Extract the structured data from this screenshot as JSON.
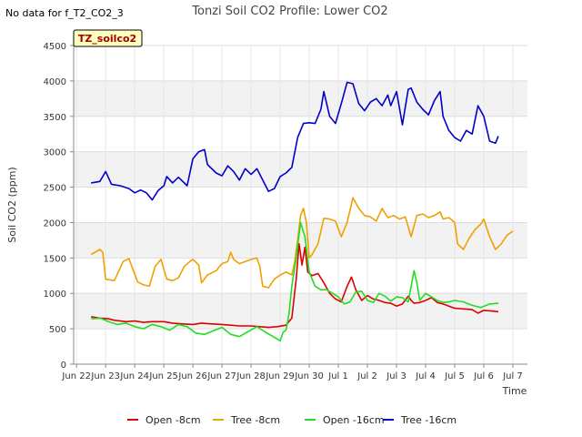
{
  "no_data_note": "No data for f_T2_CO2_3",
  "site_badge": "TZ_soilco2",
  "chart_data": {
    "type": "line",
    "title": "Tonzi Soil CO2 Profile: Lower CO2",
    "xlabel": "Time",
    "ylabel": "Soil CO2 (ppm)",
    "xlim": [
      -0.1,
      15.5
    ],
    "ylim": [
      0,
      4500
    ],
    "grid": true,
    "legend_position": "bottom",
    "x_tick_values": [
      0,
      1,
      2,
      3,
      4,
      5,
      6,
      7,
      8,
      9,
      10,
      11,
      12,
      13,
      14,
      15
    ],
    "x_tick_labels": [
      "Jun 22",
      "Jun 23",
      "Jun 24",
      "Jun 25",
      "Jun 26",
      "Jun 27",
      "Jun 28",
      "Jun 29",
      "Jun 30",
      "Jul 1",
      "Jul 2",
      "Jul 3",
      "Jul 4",
      "Jul 5",
      "Jul 6",
      "Jul 7"
    ],
    "y_tick_values": [
      0,
      500,
      1000,
      1500,
      2000,
      2500,
      3000,
      3500,
      4000,
      4500
    ],
    "y_tick_labels": [
      "0",
      "500",
      "1000",
      "1500",
      "2000",
      "2500",
      "3000",
      "3500",
      "4000",
      "4500"
    ],
    "series": [
      {
        "name": "Open -8cm",
        "color": "#dd0000",
        "points": [
          [
            0.5,
            670
          ],
          [
            0.8,
            650
          ],
          [
            1.1,
            640
          ],
          [
            1.3,
            620
          ],
          [
            1.7,
            600
          ],
          [
            2.0,
            610
          ],
          [
            2.3,
            590
          ],
          [
            2.6,
            600
          ],
          [
            3.0,
            600
          ],
          [
            3.3,
            580
          ],
          [
            3.6,
            570
          ],
          [
            4.0,
            560
          ],
          [
            4.3,
            580
          ],
          [
            4.6,
            570
          ],
          [
            5.0,
            560
          ],
          [
            5.3,
            550
          ],
          [
            5.6,
            540
          ],
          [
            6.0,
            540
          ],
          [
            6.3,
            530
          ],
          [
            6.6,
            520
          ],
          [
            6.9,
            530
          ],
          [
            7.2,
            550
          ],
          [
            7.4,
            650
          ],
          [
            7.55,
            1200
          ],
          [
            7.65,
            1700
          ],
          [
            7.75,
            1400
          ],
          [
            7.85,
            1650
          ],
          [
            7.95,
            1300
          ],
          [
            8.1,
            1250
          ],
          [
            8.3,
            1280
          ],
          [
            8.5,
            1150
          ],
          [
            8.7,
            1000
          ],
          [
            8.9,
            920
          ],
          [
            9.1,
            880
          ],
          [
            9.3,
            1100
          ],
          [
            9.45,
            1230
          ],
          [
            9.6,
            1050
          ],
          [
            9.8,
            900
          ],
          [
            10.0,
            970
          ],
          [
            10.2,
            920
          ],
          [
            10.4,
            900
          ],
          [
            10.6,
            870
          ],
          [
            10.8,
            860
          ],
          [
            11.0,
            820
          ],
          [
            11.2,
            850
          ],
          [
            11.4,
            960
          ],
          [
            11.5,
            900
          ],
          [
            11.6,
            860
          ],
          [
            11.8,
            870
          ],
          [
            12.0,
            900
          ],
          [
            12.2,
            940
          ],
          [
            12.4,
            870
          ],
          [
            12.6,
            850
          ],
          [
            12.8,
            820
          ],
          [
            13.0,
            790
          ],
          [
            13.3,
            780
          ],
          [
            13.6,
            770
          ],
          [
            13.8,
            720
          ],
          [
            14.0,
            760
          ],
          [
            14.3,
            750
          ],
          [
            14.5,
            740
          ]
        ]
      },
      {
        "name": "Tree -8cm",
        "color": "#f0a000",
        "points": [
          [
            0.5,
            1550
          ],
          [
            0.8,
            1620
          ],
          [
            0.9,
            1580
          ],
          [
            1.0,
            1200
          ],
          [
            1.3,
            1180
          ],
          [
            1.6,
            1450
          ],
          [
            1.8,
            1490
          ],
          [
            1.9,
            1380
          ],
          [
            2.1,
            1160
          ],
          [
            2.3,
            1120
          ],
          [
            2.5,
            1100
          ],
          [
            2.7,
            1380
          ],
          [
            2.9,
            1480
          ],
          [
            3.1,
            1200
          ],
          [
            3.3,
            1180
          ],
          [
            3.5,
            1220
          ],
          [
            3.7,
            1380
          ],
          [
            3.9,
            1450
          ],
          [
            4.0,
            1480
          ],
          [
            4.2,
            1400
          ],
          [
            4.3,
            1150
          ],
          [
            4.5,
            1260
          ],
          [
            4.8,
            1320
          ],
          [
            5.0,
            1420
          ],
          [
            5.2,
            1450
          ],
          [
            5.3,
            1580
          ],
          [
            5.4,
            1480
          ],
          [
            5.6,
            1420
          ],
          [
            5.8,
            1450
          ],
          [
            6.0,
            1480
          ],
          [
            6.2,
            1500
          ],
          [
            6.3,
            1380
          ],
          [
            6.4,
            1100
          ],
          [
            6.6,
            1080
          ],
          [
            6.8,
            1200
          ],
          [
            7.0,
            1260
          ],
          [
            7.2,
            1300
          ],
          [
            7.4,
            1260
          ],
          [
            7.5,
            1450
          ],
          [
            7.6,
            1750
          ],
          [
            7.7,
            2100
          ],
          [
            7.8,
            2200
          ],
          [
            7.9,
            2000
          ],
          [
            8.0,
            1500
          ],
          [
            8.1,
            1550
          ],
          [
            8.3,
            1700
          ],
          [
            8.5,
            2060
          ],
          [
            8.7,
            2050
          ],
          [
            8.9,
            2020
          ],
          [
            9.1,
            1800
          ],
          [
            9.3,
            2000
          ],
          [
            9.5,
            2350
          ],
          [
            9.7,
            2200
          ],
          [
            9.9,
            2100
          ],
          [
            10.1,
            2080
          ],
          [
            10.3,
            2020
          ],
          [
            10.5,
            2200
          ],
          [
            10.7,
            2070
          ],
          [
            10.9,
            2100
          ],
          [
            11.1,
            2050
          ],
          [
            11.3,
            2080
          ],
          [
            11.5,
            1800
          ],
          [
            11.7,
            2100
          ],
          [
            11.9,
            2120
          ],
          [
            12.1,
            2070
          ],
          [
            12.3,
            2100
          ],
          [
            12.5,
            2150
          ],
          [
            12.6,
            2050
          ],
          [
            12.8,
            2070
          ],
          [
            13.0,
            2000
          ],
          [
            13.1,
            1700
          ],
          [
            13.3,
            1620
          ],
          [
            13.5,
            1780
          ],
          [
            13.7,
            1900
          ],
          [
            13.9,
            1980
          ],
          [
            14.0,
            2050
          ],
          [
            14.2,
            1800
          ],
          [
            14.4,
            1620
          ],
          [
            14.6,
            1700
          ],
          [
            14.8,
            1820
          ],
          [
            15.0,
            1880
          ]
        ]
      },
      {
        "name": "Open -16cm",
        "color": "#22dd22",
        "points": [
          [
            0.5,
            640
          ],
          [
            0.8,
            650
          ],
          [
            1.1,
            600
          ],
          [
            1.4,
            560
          ],
          [
            1.7,
            580
          ],
          [
            2.0,
            530
          ],
          [
            2.3,
            500
          ],
          [
            2.6,
            560
          ],
          [
            2.9,
            530
          ],
          [
            3.2,
            480
          ],
          [
            3.5,
            560
          ],
          [
            3.8,
            530
          ],
          [
            4.1,
            440
          ],
          [
            4.4,
            420
          ],
          [
            4.7,
            470
          ],
          [
            5.0,
            520
          ],
          [
            5.3,
            420
          ],
          [
            5.6,
            390
          ],
          [
            5.9,
            460
          ],
          [
            6.2,
            530
          ],
          [
            6.5,
            450
          ],
          [
            6.8,
            380
          ],
          [
            7.0,
            330
          ],
          [
            7.1,
            450
          ],
          [
            7.2,
            480
          ],
          [
            7.3,
            700
          ],
          [
            7.4,
            1100
          ],
          [
            7.55,
            1500
          ],
          [
            7.7,
            2000
          ],
          [
            7.85,
            1800
          ],
          [
            8.0,
            1300
          ],
          [
            8.2,
            1100
          ],
          [
            8.4,
            1050
          ],
          [
            8.6,
            1050
          ],
          [
            8.8,
            1000
          ],
          [
            9.0,
            950
          ],
          [
            9.2,
            850
          ],
          [
            9.4,
            880
          ],
          [
            9.6,
            1020
          ],
          [
            9.8,
            1030
          ],
          [
            10.0,
            900
          ],
          [
            10.2,
            870
          ],
          [
            10.4,
            1000
          ],
          [
            10.6,
            960
          ],
          [
            10.8,
            890
          ],
          [
            11.0,
            950
          ],
          [
            11.2,
            940
          ],
          [
            11.4,
            880
          ],
          [
            11.6,
            1320
          ],
          [
            11.7,
            1150
          ],
          [
            11.8,
            900
          ],
          [
            12.0,
            1000
          ],
          [
            12.2,
            950
          ],
          [
            12.4,
            900
          ],
          [
            12.6,
            870
          ],
          [
            12.8,
            880
          ],
          [
            13.0,
            900
          ],
          [
            13.3,
            880
          ],
          [
            13.6,
            830
          ],
          [
            13.9,
            800
          ],
          [
            14.2,
            850
          ],
          [
            14.5,
            860
          ]
        ]
      },
      {
        "name": "Tree -16cm",
        "color": "#0000cc",
        "points": [
          [
            0.5,
            2560
          ],
          [
            0.8,
            2580
          ],
          [
            1.0,
            2720
          ],
          [
            1.2,
            2540
          ],
          [
            1.5,
            2520
          ],
          [
            1.8,
            2480
          ],
          [
            2.0,
            2420
          ],
          [
            2.2,
            2460
          ],
          [
            2.4,
            2420
          ],
          [
            2.6,
            2320
          ],
          [
            2.8,
            2450
          ],
          [
            3.0,
            2520
          ],
          [
            3.1,
            2650
          ],
          [
            3.3,
            2560
          ],
          [
            3.5,
            2640
          ],
          [
            3.8,
            2520
          ],
          [
            4.0,
            2900
          ],
          [
            4.2,
            3000
          ],
          [
            4.4,
            3030
          ],
          [
            4.5,
            2820
          ],
          [
            4.8,
            2700
          ],
          [
            5.0,
            2660
          ],
          [
            5.2,
            2800
          ],
          [
            5.4,
            2720
          ],
          [
            5.6,
            2600
          ],
          [
            5.8,
            2760
          ],
          [
            6.0,
            2680
          ],
          [
            6.2,
            2760
          ],
          [
            6.4,
            2600
          ],
          [
            6.6,
            2440
          ],
          [
            6.8,
            2480
          ],
          [
            7.0,
            2650
          ],
          [
            7.2,
            2700
          ],
          [
            7.4,
            2780
          ],
          [
            7.6,
            3200
          ],
          [
            7.8,
            3400
          ],
          [
            8.0,
            3410
          ],
          [
            8.2,
            3400
          ],
          [
            8.4,
            3600
          ],
          [
            8.5,
            3850
          ],
          [
            8.7,
            3500
          ],
          [
            8.9,
            3400
          ],
          [
            9.1,
            3680
          ],
          [
            9.3,
            3980
          ],
          [
            9.5,
            3960
          ],
          [
            9.7,
            3680
          ],
          [
            9.9,
            3580
          ],
          [
            10.1,
            3700
          ],
          [
            10.3,
            3750
          ],
          [
            10.5,
            3650
          ],
          [
            10.7,
            3800
          ],
          [
            10.8,
            3650
          ],
          [
            11.0,
            3850
          ],
          [
            11.2,
            3380
          ],
          [
            11.4,
            3880
          ],
          [
            11.5,
            3900
          ],
          [
            11.7,
            3700
          ],
          [
            11.9,
            3600
          ],
          [
            12.1,
            3520
          ],
          [
            12.3,
            3720
          ],
          [
            12.5,
            3850
          ],
          [
            12.6,
            3500
          ],
          [
            12.8,
            3300
          ],
          [
            13.0,
            3200
          ],
          [
            13.2,
            3150
          ],
          [
            13.4,
            3300
          ],
          [
            13.6,
            3250
          ],
          [
            13.8,
            3650
          ],
          [
            14.0,
            3500
          ],
          [
            14.2,
            3150
          ],
          [
            14.4,
            3120
          ],
          [
            14.5,
            3220
          ]
        ]
      }
    ]
  }
}
